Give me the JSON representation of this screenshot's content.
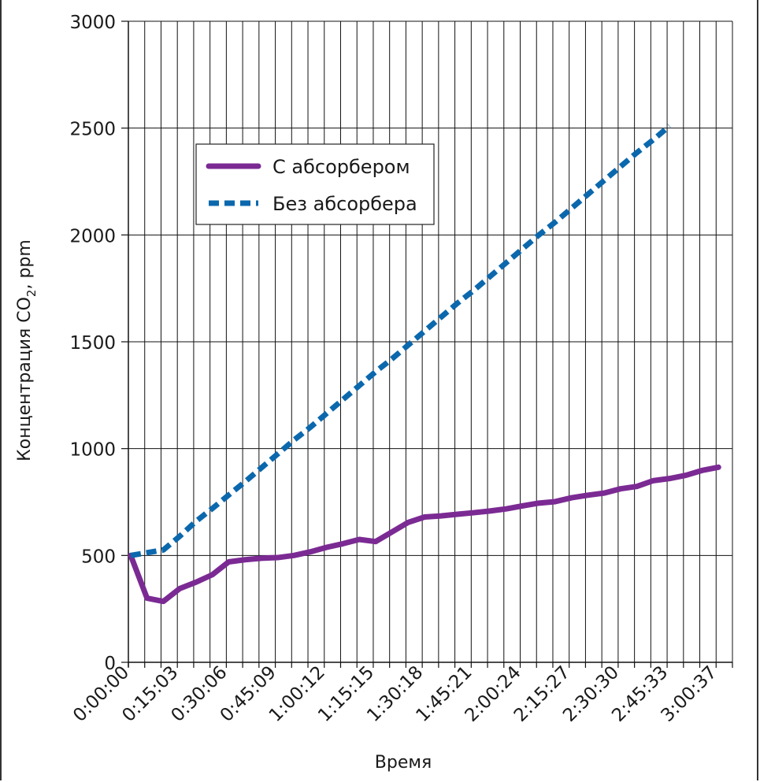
{
  "chart_data": {
    "type": "line",
    "title": "",
    "xlabel": "Время",
    "ylabel": "Концентрация CO",
    "ylabel_sub": "2",
    "ylabel_suffix": ", ppm",
    "ylim": [
      0,
      3000
    ],
    "yticks": [
      0,
      500,
      1000,
      1500,
      2000,
      2500,
      3000
    ],
    "xtick_labels": [
      "0:00:00",
      "0:15:03",
      "0:30:06",
      "0:45:09",
      "1:00:12",
      "1:15:15",
      "1:30:18",
      "1:45:21",
      "2:00:24",
      "2:15:27",
      "2:30:30",
      "2:45:33",
      "3:00:37"
    ],
    "grid": true,
    "legend_position": "top-left",
    "series": [
      {
        "name": "С абсорбером",
        "color": "#7b2a93",
        "style": "solid",
        "values": [
          500,
          300,
          285,
          345,
          375,
          410,
          470,
          480,
          487,
          490,
          500,
          517,
          538,
          555,
          575,
          565,
          610,
          655,
          680,
          685,
          693,
          700,
          708,
          718,
          732,
          745,
          752,
          770,
          782,
          792,
          812,
          823,
          850,
          860,
          875,
          898,
          913
        ]
      },
      {
        "name": "Без абсорбера",
        "color": "#0b68ad",
        "style": "dashed",
        "values": [
          500,
          513,
          526,
          590,
          660,
          720,
          783,
          845,
          910,
          975,
          1040,
          1100,
          1165,
          1230,
          1295,
          1360,
          1420,
          1485,
          1550,
          1615,
          1680,
          1740,
          1805,
          1870,
          1935,
          2000,
          2060,
          2125,
          2190,
          2255,
          2320,
          2385,
          2445,
          2510
        ]
      }
    ]
  }
}
